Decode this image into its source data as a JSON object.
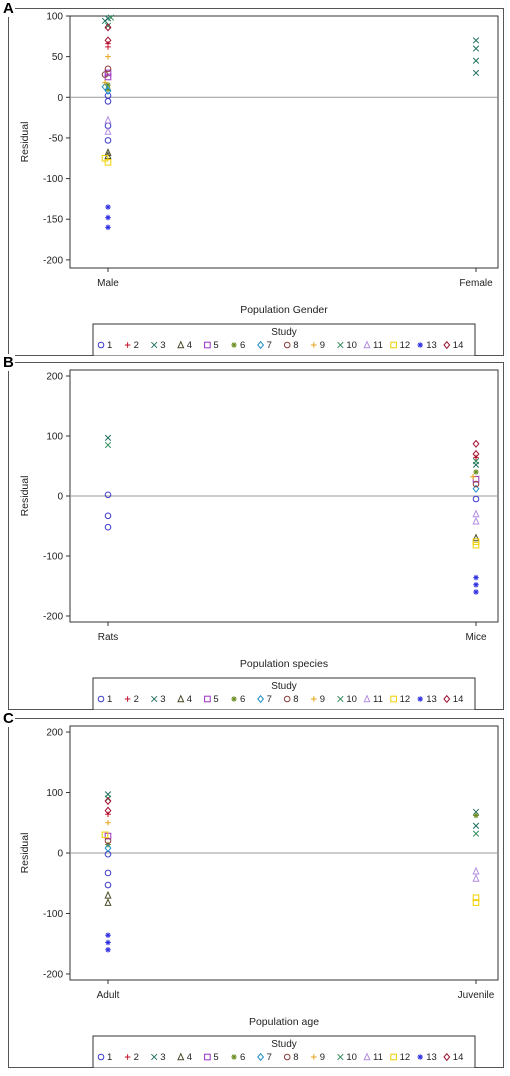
{
  "study_label": "Study",
  "legend_studies": [
    "1",
    "2",
    "3",
    "4",
    "5",
    "6",
    "7",
    "8",
    "9",
    "10",
    "11",
    "12",
    "13",
    "14"
  ],
  "study_colors": [
    "#3a3ac8",
    "#c8102e",
    "#1f6f5f",
    "#4a4a2a",
    "#9b30c8",
    "#6b8e23",
    "#1e90c8",
    "#8b3a3a",
    "#e8a317",
    "#2e8b57",
    "#b48ee0",
    "#f0d000",
    "#3030e0",
    "#a01030"
  ],
  "study_markers": [
    "circle",
    "plus",
    "x",
    "triangle",
    "square",
    "star",
    "diamond",
    "circle",
    "plus",
    "x",
    "triangle",
    "square",
    "star",
    "diamond"
  ],
  "chart_data": [
    {
      "panel": "A",
      "type": "scatter",
      "ylabel": "Residual",
      "xlabel": "Population Gender",
      "categories": [
        "Male",
        "Female"
      ],
      "ylim": [
        -210,
        100
      ],
      "yticks": [
        -200,
        -150,
        -100,
        -50,
        0,
        50,
        100
      ],
      "reference_line": 0,
      "points": [
        {
          "study": 1,
          "x": "Male",
          "y": -53
        },
        {
          "study": 1,
          "x": "Male",
          "y": -35
        },
        {
          "study": 1,
          "x": "Male",
          "y": -5
        },
        {
          "study": 1,
          "x": "Male",
          "y": 2
        },
        {
          "study": 2,
          "x": "Male",
          "y": 62
        },
        {
          "study": 2,
          "x": "Male",
          "y": 66
        },
        {
          "study": 3,
          "x": "Male",
          "y": 97
        },
        {
          "study": 3,
          "x": "Male",
          "y": 94
        },
        {
          "study": 3,
          "x": "Female",
          "y": 70
        },
        {
          "study": 3,
          "x": "Female",
          "y": 60
        },
        {
          "study": 3,
          "x": "Female",
          "y": 45
        },
        {
          "study": 3,
          "x": "Female",
          "y": 30
        },
        {
          "study": 4,
          "x": "Male",
          "y": -68
        },
        {
          "study": 4,
          "x": "Male",
          "y": -72
        },
        {
          "study": 5,
          "x": "Male",
          "y": 30
        },
        {
          "study": 5,
          "x": "Male",
          "y": 25
        },
        {
          "study": 6,
          "x": "Male",
          "y": 15
        },
        {
          "study": 6,
          "x": "Male",
          "y": 10
        },
        {
          "study": 7,
          "x": "Male",
          "y": 8
        },
        {
          "study": 7,
          "x": "Male",
          "y": 13
        },
        {
          "study": 8,
          "x": "Male",
          "y": 35
        },
        {
          "study": 8,
          "x": "Male",
          "y": 28
        },
        {
          "study": 9,
          "x": "Male",
          "y": 50
        },
        {
          "study": 9,
          "x": "Male",
          "y": 18
        },
        {
          "study": 10,
          "x": "Male",
          "y": 98
        },
        {
          "study": 10,
          "x": "Male",
          "y": 88
        },
        {
          "study": 11,
          "x": "Male",
          "y": -28
        },
        {
          "study": 11,
          "x": "Male",
          "y": -42
        },
        {
          "study": 12,
          "x": "Male",
          "y": -75
        },
        {
          "study": 12,
          "x": "Male",
          "y": -80
        },
        {
          "study": 13,
          "x": "Male",
          "y": -135
        },
        {
          "study": 13,
          "x": "Male",
          "y": -148
        },
        {
          "study": 13,
          "x": "Male",
          "y": -160
        },
        {
          "study": 14,
          "x": "Male",
          "y": 86
        },
        {
          "study": 14,
          "x": "Male",
          "y": 70
        }
      ]
    },
    {
      "panel": "B",
      "type": "scatter",
      "ylabel": "Residual",
      "xlabel": "Population species",
      "categories": [
        "Rats",
        "Mice"
      ],
      "ylim": [
        -210,
        210
      ],
      "yticks": [
        -200,
        -100,
        0,
        100,
        200
      ],
      "reference_line": 0,
      "points": [
        {
          "study": 1,
          "x": "Rats",
          "y": 2
        },
        {
          "study": 1,
          "x": "Rats",
          "y": -33
        },
        {
          "study": 1,
          "x": "Rats",
          "y": -52
        },
        {
          "study": 3,
          "x": "Rats",
          "y": 97
        },
        {
          "study": 10,
          "x": "Rats",
          "y": 85
        },
        {
          "study": 1,
          "x": "Mice",
          "y": -5
        },
        {
          "study": 2,
          "x": "Mice",
          "y": 64
        },
        {
          "study": 3,
          "x": "Mice",
          "y": 52
        },
        {
          "study": 4,
          "x": "Mice",
          "y": -70
        },
        {
          "study": 5,
          "x": "Mice",
          "y": 28
        },
        {
          "study": 6,
          "x": "Mice",
          "y": 40
        },
        {
          "study": 7,
          "x": "Mice",
          "y": 12
        },
        {
          "study": 8,
          "x": "Mice",
          "y": 20
        },
        {
          "study": 9,
          "x": "Mice",
          "y": 32
        },
        {
          "study": 10,
          "x": "Mice",
          "y": 58
        },
        {
          "study": 11,
          "x": "Mice",
          "y": -30
        },
        {
          "study": 11,
          "x": "Mice",
          "y": -42
        },
        {
          "study": 12,
          "x": "Mice",
          "y": -76
        },
        {
          "study": 12,
          "x": "Mice",
          "y": -82
        },
        {
          "study": 13,
          "x": "Mice",
          "y": -136
        },
        {
          "study": 13,
          "x": "Mice",
          "y": -148
        },
        {
          "study": 13,
          "x": "Mice",
          "y": -160
        },
        {
          "study": 14,
          "x": "Mice",
          "y": 87
        },
        {
          "study": 14,
          "x": "Mice",
          "y": 70
        }
      ]
    },
    {
      "panel": "C",
      "type": "scatter",
      "ylabel": "Residual",
      "xlabel": "Population age",
      "categories": [
        "Adult",
        "Juvenile"
      ],
      "ylim": [
        -210,
        210
      ],
      "yticks": [
        -200,
        -100,
        0,
        100,
        200
      ],
      "reference_line": 0,
      "points": [
        {
          "study": 1,
          "x": "Adult",
          "y": -53
        },
        {
          "study": 1,
          "x": "Adult",
          "y": -33
        },
        {
          "study": 1,
          "x": "Adult",
          "y": -2
        },
        {
          "study": 2,
          "x": "Adult",
          "y": 64
        },
        {
          "study": 3,
          "x": "Adult",
          "y": 97
        },
        {
          "study": 4,
          "x": "Adult",
          "y": -70
        },
        {
          "study": 4,
          "x": "Adult",
          "y": -82
        },
        {
          "study": 5,
          "x": "Adult",
          "y": 28
        },
        {
          "study": 6,
          "x": "Adult",
          "y": 14
        },
        {
          "study": 7,
          "x": "Adult",
          "y": 8
        },
        {
          "study": 8,
          "x": "Adult",
          "y": 20
        },
        {
          "study": 9,
          "x": "Adult",
          "y": 50
        },
        {
          "study": 10,
          "x": "Adult",
          "y": 90
        },
        {
          "study": 12,
          "x": "Adult",
          "y": 30
        },
        {
          "study": 13,
          "x": "Adult",
          "y": -136
        },
        {
          "study": 13,
          "x": "Adult",
          "y": -148
        },
        {
          "study": 13,
          "x": "Adult",
          "y": -160
        },
        {
          "study": 14,
          "x": "Adult",
          "y": 86
        },
        {
          "study": 14,
          "x": "Adult",
          "y": 70
        },
        {
          "study": 3,
          "x": "Juvenile",
          "y": 68
        },
        {
          "study": 3,
          "x": "Juvenile",
          "y": 45
        },
        {
          "study": 10,
          "x": "Juvenile",
          "y": 32
        },
        {
          "study": 6,
          "x": "Juvenile",
          "y": 62
        },
        {
          "study": 11,
          "x": "Juvenile",
          "y": -30
        },
        {
          "study": 11,
          "x": "Juvenile",
          "y": -42
        },
        {
          "study": 12,
          "x": "Juvenile",
          "y": -74
        },
        {
          "study": 12,
          "x": "Juvenile",
          "y": -82
        }
      ]
    }
  ]
}
